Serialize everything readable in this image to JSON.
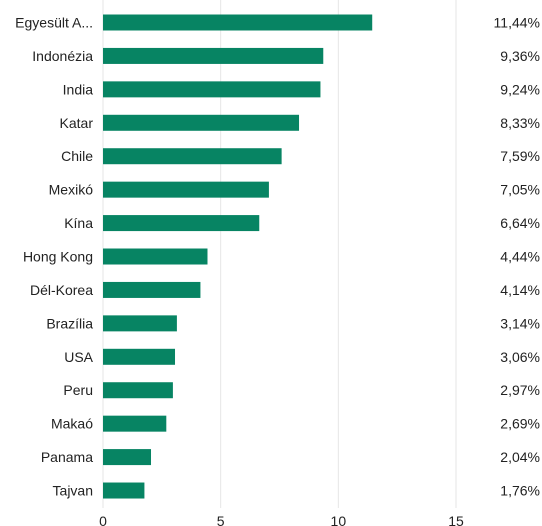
{
  "chart_data": {
    "type": "bar",
    "orientation": "horizontal",
    "categories": [
      "Egyesült A...",
      "Indonézia",
      "India",
      "Katar",
      "Chile",
      "Mexikó",
      "Kína",
      "Hong Kong",
      "Dél-Korea",
      "Brazília",
      "USA",
      "Peru",
      "Makaó",
      "Panama",
      "Tajvan"
    ],
    "values": [
      11.44,
      9.36,
      9.24,
      8.33,
      7.59,
      7.05,
      6.64,
      4.44,
      4.14,
      3.14,
      3.06,
      2.97,
      2.69,
      2.04,
      1.76
    ],
    "value_labels": [
      "11,44%",
      "9,36%",
      "9,24%",
      "8,33%",
      "7,59%",
      "7,05%",
      "6,64%",
      "4,44%",
      "4,14%",
      "3,14%",
      "3,06%",
      "2,97%",
      "2,69%",
      "2,04%",
      "1,76%"
    ],
    "x_ticks": [
      0,
      5,
      10,
      15
    ],
    "x_tick_labels": [
      "0",
      "5",
      "10",
      "15"
    ],
    "xlim": [
      0,
      15
    ],
    "grid": true,
    "bar_color": "#078463"
  }
}
